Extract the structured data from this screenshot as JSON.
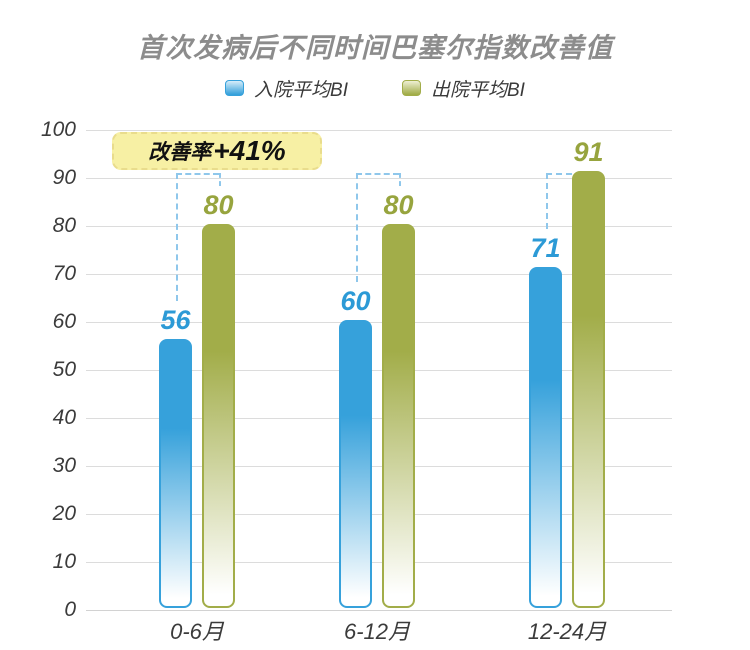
{
  "title": "首次发病后不同时间巴塞尔指数改善值",
  "legend": {
    "items": [
      {
        "label": "入院平均BI",
        "color": "#36a1db",
        "swatch_light": "#d6edf9"
      },
      {
        "label": "出院平均BI",
        "color": "#a2ad49",
        "swatch_light": "#eef0d3"
      }
    ]
  },
  "annotation": {
    "prefix": "改善率",
    "value": "+41%",
    "bg_color": "#f7f0a4"
  },
  "chart_data": {
    "type": "bar",
    "title": "首次发病后不同时间巴塞尔指数改善值",
    "categories": [
      "0-6月",
      "6-12月",
      "12-24月"
    ],
    "series": [
      {
        "name": "入院平均BI",
        "values": [
          56,
          60,
          71
        ],
        "color": "#36a1db",
        "label_color": "#2c9ad6"
      },
      {
        "name": "出院平均BI",
        "values": [
          80,
          80,
          91
        ],
        "color": "#a2ad49",
        "label_color": "#97a43e"
      }
    ],
    "ylim": [
      0,
      100
    ],
    "ytick_step": 10,
    "grid": true,
    "legend_position": "top",
    "xlabel": "",
    "ylabel": "",
    "bracket_color": "#8fc7eb",
    "bracket_top_value": 91,
    "gridline_color": "#dcdcdc"
  }
}
